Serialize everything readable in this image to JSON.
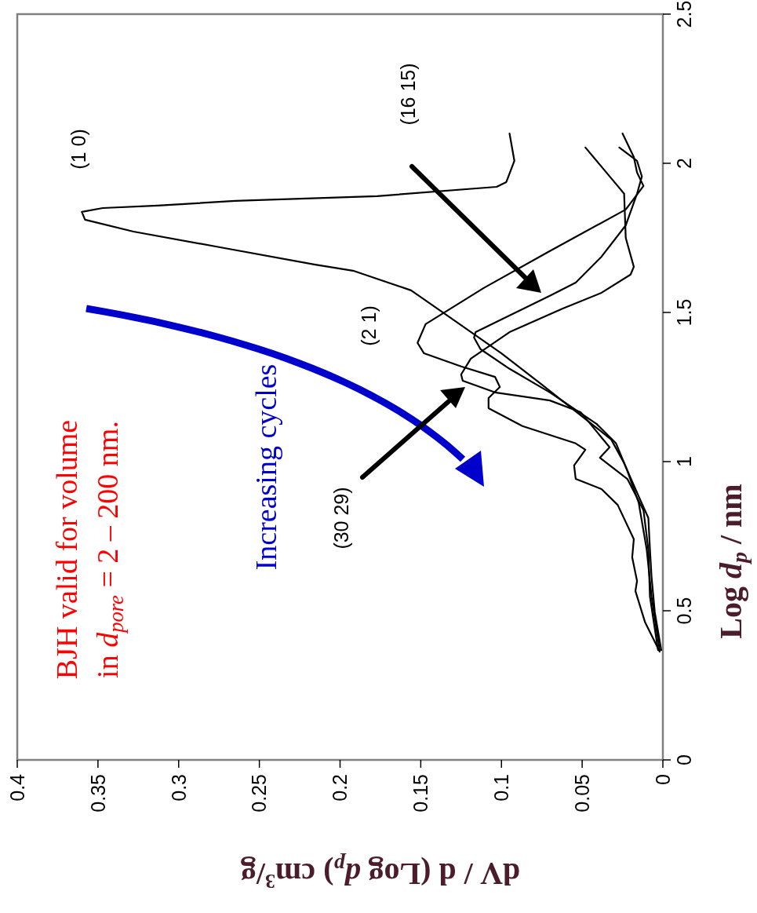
{
  "chart_data": {
    "type": "line",
    "xlabel": "dV / d (Log d$_{p}$) cm$^{3}$/g",
    "ylabel": "Log d$_{p}$ / nm",
    "xlim": [
      0.4,
      0
    ],
    "xticks": [
      0.4,
      0.35,
      0.3,
      0.25,
      0.2,
      0.15,
      0.1,
      0.05,
      0
    ],
    "ylim": [
      0,
      2.5
    ],
    "yticks": [
      0,
      0.5,
      1,
      1.5,
      2,
      2.5
    ],
    "grid": false,
    "marker": "none",
    "line_style": "solid",
    "series": [
      {
        "color": "#000000",
        "values": [
          0.368,
          0.495,
          0.613,
          0.705,
          0.811,
          0.884,
          0.995,
          1.074,
          1.113,
          1.258,
          1.363,
          1.495,
          1.574,
          1.64,
          1.661,
          1.719,
          1.771,
          1.811,
          1.837,
          1.85,
          1.858,
          1.874,
          1.89,
          1.921,
          1.937,
          2.008,
          2.1
        ],
        "x": [
          0.001,
          0.005,
          0.007,
          0.008,
          0.009,
          0.015,
          0.024,
          0.032,
          0.041,
          0.075,
          0.1,
          0.135,
          0.156,
          0.192,
          0.216,
          0.275,
          0.328,
          0.358,
          0.36,
          0.347,
          0.313,
          0.265,
          0.177,
          0.103,
          0.097,
          0.092,
          0.095
        ]
      },
      {
        "color": "#000000",
        "values": [
          0.363,
          0.461,
          0.566,
          0.6,
          0.679,
          0.74,
          0.855,
          0.908,
          0.942,
          0.987,
          1.04,
          1.061,
          1.119,
          1.179,
          1.213,
          1.25,
          1.284,
          1.319,
          1.363,
          1.398,
          1.461,
          1.582,
          1.706,
          1.845,
          1.924,
          1.969,
          2.021,
          2.1
        ],
        "x": [
          0.002,
          0.011,
          0.017,
          0.016,
          0.019,
          0.018,
          0.028,
          0.038,
          0.054,
          0.055,
          0.048,
          0.054,
          0.087,
          0.108,
          0.108,
          0.101,
          0.104,
          0.125,
          0.148,
          0.152,
          0.147,
          0.111,
          0.07,
          0.023,
          0.012,
          0.016,
          0.018,
          0.025
        ]
      },
      {
        "color": "#000000",
        "values": [
          0.368,
          0.547,
          0.705,
          0.863,
          0.969,
          1.061,
          1.126,
          1.232,
          1.311,
          1.377,
          1.416,
          1.434,
          1.556,
          1.6,
          1.687,
          1.792,
          1.898,
          1.956,
          2.008,
          2.053
        ],
        "x": [
          0.002,
          0.007,
          0.01,
          0.015,
          0.022,
          0.029,
          0.041,
          0.07,
          0.095,
          0.113,
          0.117,
          0.116,
          0.07,
          0.054,
          0.038,
          0.023,
          0.016,
          0.013,
          0.016,
          0.027
        ]
      },
      {
        "color": "#000000",
        "values": [
          0.368,
          0.547,
          0.705,
          0.837,
          0.942,
          1.013,
          1.048,
          1.166,
          1.205,
          1.232,
          1.271,
          1.292,
          1.345,
          1.434,
          1.513,
          1.566,
          1.627,
          1.653,
          1.75,
          1.898,
          1.924,
          2.053
        ],
        "x": [
          0.003,
          0.008,
          0.009,
          0.012,
          0.022,
          0.039,
          0.033,
          0.051,
          0.07,
          0.104,
          0.124,
          0.125,
          0.119,
          0.095,
          0.062,
          0.038,
          0.02,
          0.018,
          0.023,
          0.024,
          0.028,
          0.048
        ]
      }
    ],
    "annotations": [
      "(1 0)",
      "(2 1)",
      "(16 15)",
      "(30 29)",
      "Increasing cycles",
      "BJH valid for volume",
      "in d$_{pore}$ = 2 – 200 nm."
    ]
  }
}
